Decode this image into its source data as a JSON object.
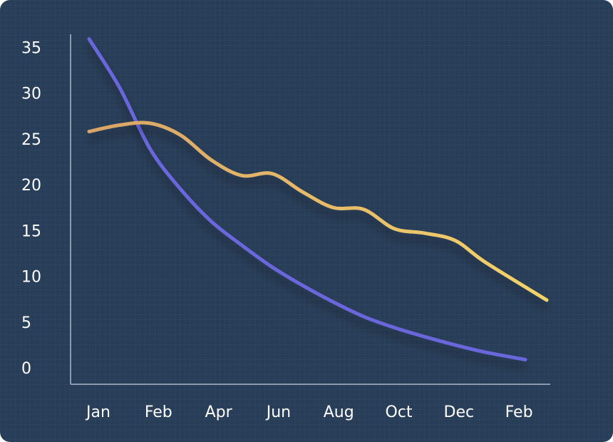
{
  "chart_data": {
    "type": "line",
    "title": "",
    "xlabel": "",
    "ylabel": "",
    "x_tick_labels": [
      "Jan",
      "Feb",
      "Apr",
      "Jun",
      "Aug",
      "Oct",
      "Dec",
      "Feb"
    ],
    "y_ticks": [
      0,
      5,
      10,
      15,
      20,
      25,
      30,
      35
    ],
    "ylim": [
      0,
      36
    ],
    "x_range": [
      0,
      15
    ],
    "grid": false,
    "legend": "none",
    "series": [
      {
        "color": "#6a66dc",
        "points": [
          {
            "x": 0,
            "y": 35.9
          },
          {
            "x": 1,
            "y": 30.6
          },
          {
            "x": 2,
            "y": 23.9
          },
          {
            "x": 3,
            "y": 19.5
          },
          {
            "x": 4,
            "y": 16.0
          },
          {
            "x": 5,
            "y": 13.4
          },
          {
            "x": 6,
            "y": 11.0
          },
          {
            "x": 7,
            "y": 9.0
          },
          {
            "x": 8,
            "y": 7.2
          },
          {
            "x": 9,
            "y": 5.6
          },
          {
            "x": 10,
            "y": 4.4
          },
          {
            "x": 11,
            "y": 3.4
          },
          {
            "x": 12,
            "y": 2.5
          },
          {
            "x": 13,
            "y": 1.7
          },
          {
            "x": 14.3,
            "y": 0.9
          }
        ]
      },
      {
        "color_start": "#d9a468",
        "color_end": "#f4d36a",
        "points": [
          {
            "x": 0,
            "y": 25.8
          },
          {
            "x": 1,
            "y": 26.5
          },
          {
            "x": 2,
            "y": 26.7
          },
          {
            "x": 3,
            "y": 25.4
          },
          {
            "x": 4,
            "y": 22.7
          },
          {
            "x": 5,
            "y": 21.0
          },
          {
            "x": 6,
            "y": 21.2
          },
          {
            "x": 7,
            "y": 19.2
          },
          {
            "x": 8,
            "y": 17.5
          },
          {
            "x": 9,
            "y": 17.3
          },
          {
            "x": 10,
            "y": 15.2
          },
          {
            "x": 11,
            "y": 14.7
          },
          {
            "x": 12,
            "y": 13.9
          },
          {
            "x": 13,
            "y": 11.5
          },
          {
            "x": 15,
            "y": 7.4
          }
        ]
      }
    ]
  }
}
